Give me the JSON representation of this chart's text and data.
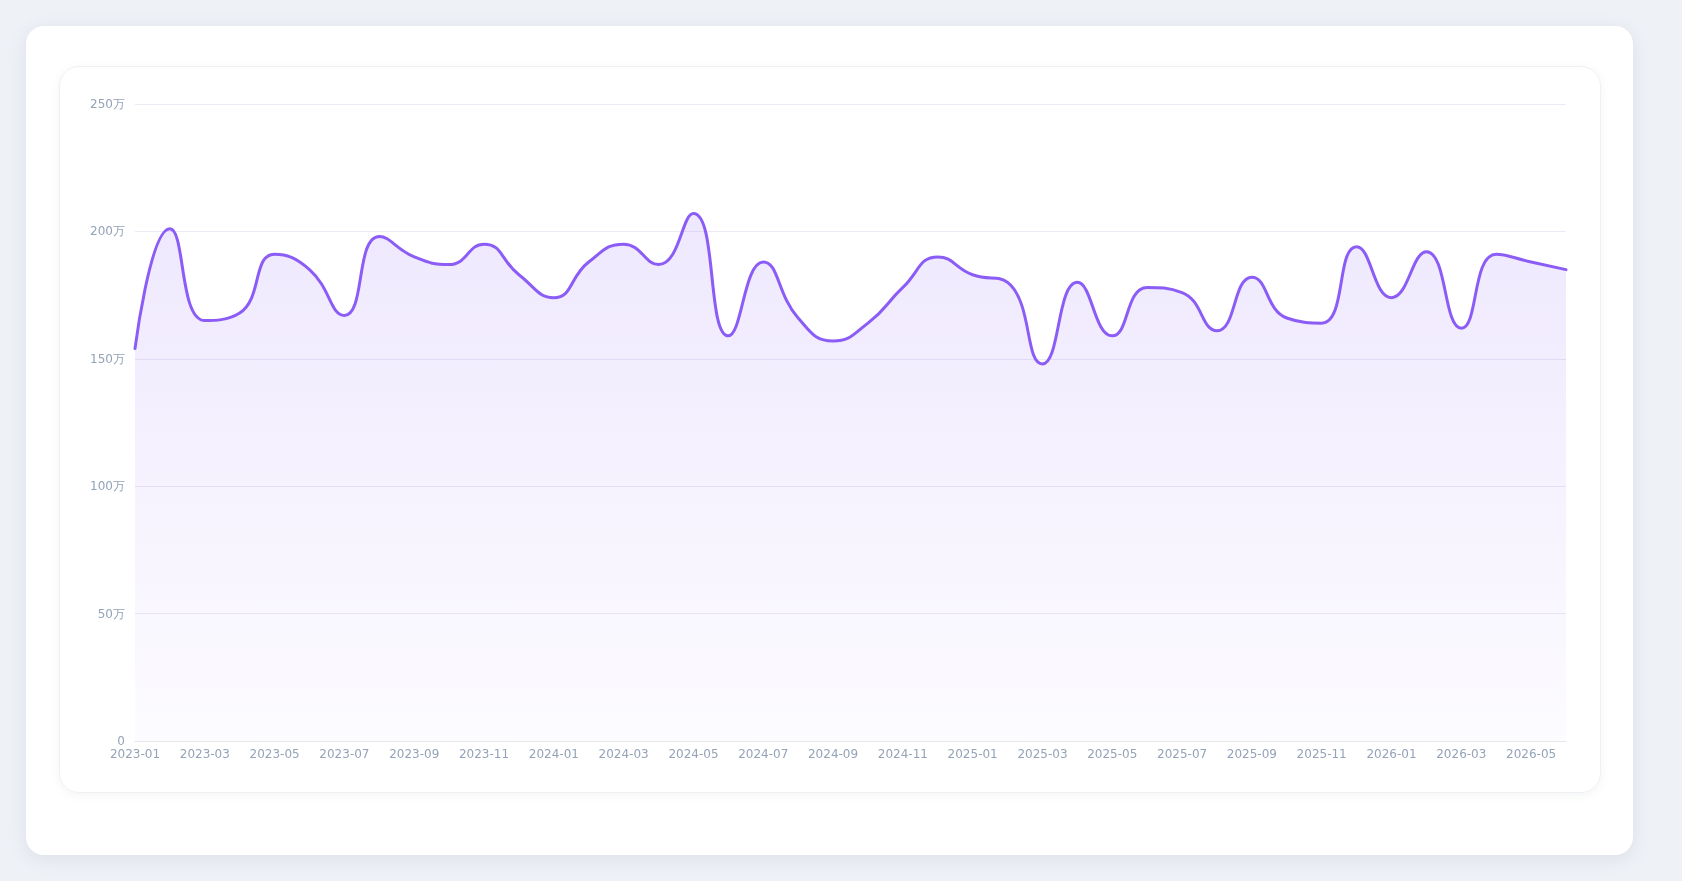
{
  "chart_data": {
    "type": "area",
    "categories": [
      "2023-01",
      null,
      "2023-03",
      null,
      "2023-05",
      null,
      "2023-07",
      null,
      "2023-09",
      null,
      "2023-11",
      null,
      "2024-01",
      null,
      "2024-03",
      null,
      "2024-05",
      null,
      "2024-07",
      null,
      "2024-09",
      null,
      "2024-11",
      null,
      "2025-01",
      null,
      "2025-03",
      null,
      "2025-05",
      null,
      "2025-07",
      null,
      "2025-09",
      null,
      "2025-11",
      null,
      "2026-01",
      null,
      "2026-03",
      null,
      "2026-05",
      null
    ],
    "series": [
      {
        "color": "#8b5cf6",
        "values": [
          154,
          201,
          165,
          168,
          191,
          185,
          167,
          198,
          190,
          187,
          195,
          183,
          174,
          188,
          195,
          187,
          207,
          159,
          188,
          166,
          157,
          164,
          178,
          190,
          183,
          180,
          148,
          180,
          159,
          178,
          176,
          161,
          182,
          166,
          164,
          194,
          174,
          192,
          162,
          191,
          188,
          185
        ]
      }
    ],
    "ylim": [
      0,
      250
    ],
    "yticks": [
      0,
      {
        "value": 50,
        "label": "50万"
      },
      {
        "value": 100,
        "label": "100万"
      },
      {
        "value": 150,
        "label": "150万"
      },
      {
        "value": 200,
        "label": "200万"
      },
      {
        "value": 250,
        "label": "250万"
      }
    ],
    "grid": "y",
    "marker": "none",
    "line_style": "solid"
  }
}
